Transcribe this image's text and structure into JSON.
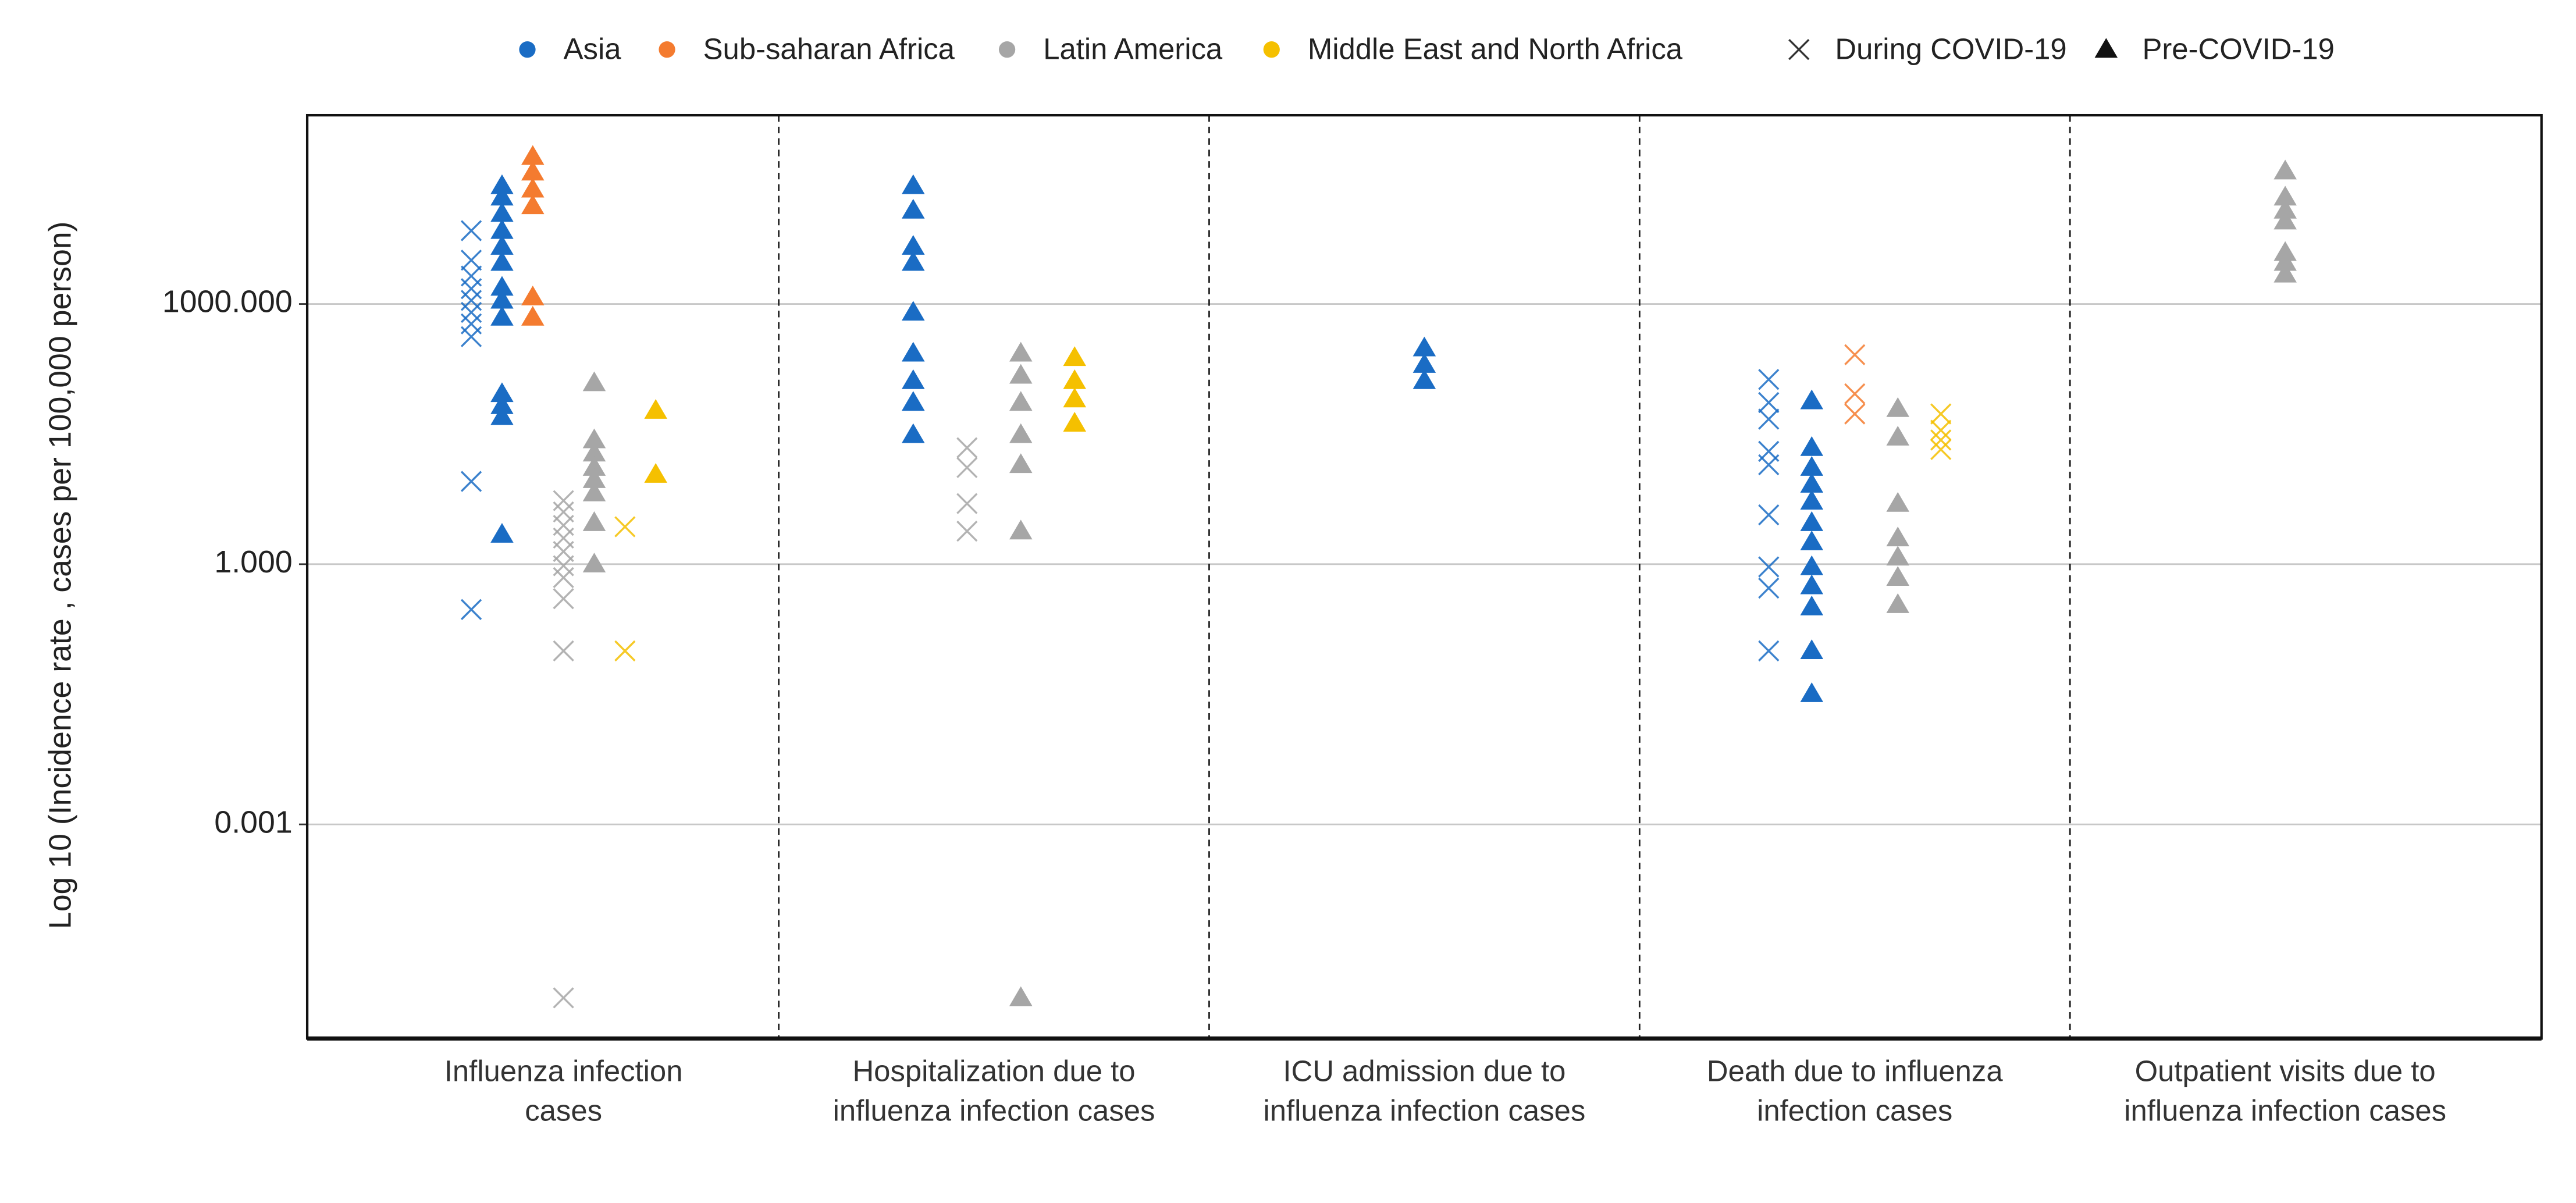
{
  "chart_data": {
    "type": "strip",
    "y_label": "Log 10 (Incidence rate , cases per 100,000 person)",
    "log_y": true,
    "grid": true,
    "legend": "top",
    "ylim": [
      3.4e-06,
      150000
    ],
    "yticks": [
      {
        "value": 1000,
        "label": "1000.000"
      },
      {
        "value": 1,
        "label": "1.000"
      },
      {
        "value": 0.001,
        "label": "0.001"
      }
    ],
    "categories": [
      "Influenza infection cases",
      "Hospitalization due to influenza infection cases",
      "ICU admission due to influenza infection cases",
      "Death due to influenza infection cases",
      "Outpatient visits due to influenza infection cases"
    ],
    "periods": [
      {
        "name": "During COVID-19",
        "marker": "x"
      },
      {
        "name": "Pre-COVID-19",
        "marker": "triangle"
      }
    ],
    "regions": [
      {
        "name": "Asia",
        "color": "#1a6cc4",
        "values": [
          [
            [
              7000,
              3200,
              2100,
              1500,
              1100,
              800,
              590,
              420,
              9,
              0.3
            ],
            [],
            [],
            [
              135,
              73,
              47,
              20,
              14,
              3.7,
              0.93,
              0.53,
              0.1
            ],
            []
          ],
          [
            [
              23000,
              17000,
              11000,
              7000,
              4600,
              3000,
              1550,
              1100,
              700,
              92,
              67,
              50,
              2.2
            ],
            [
              23000,
              12000,
              4600,
              3000,
              800,
              270,
              130,
              73,
              31
            ],
            [
              310,
              200,
              130
            ],
            [
              76,
              22,
              13,
              8.3,
              5.3,
              3,
              1.8,
              0.93,
              0.56,
              0.32,
              0.1,
              0.032
            ],
            []
          ]
        ]
      },
      {
        "name": "Sub-saharan Africa",
        "color": "#f47b2f",
        "values": [
          [
            [],
            [],
            [],
            [
              260,
              92,
              54
            ],
            []
          ],
          [
            [
              50000,
              33000,
              21000,
              13500,
              1200,
              700
            ],
            [],
            [],
            [],
            []
          ]
        ]
      },
      {
        "name": "Latin America",
        "color": "#a6a6a6",
        "values": [
          [
            [
              5.4,
              4,
              2.8,
              2,
              1.4,
              0.96,
              0.7,
              0.4,
              0.1,
              1e-05
            ],
            [
              22,
              13,
              5,
              2.4
            ],
            [],
            [],
            []
          ],
          [
            [
              123,
              27,
              19,
              13,
              9.4,
              6.6,
              3,
              1
            ],
            [
              270,
              150,
              73,
              31,
              14,
              2.4,
              1e-05
            ],
            [],
            [
              62,
              29,
              5,
              2,
              1.2,
              0.7,
              0.34
            ],
            [
              34000,
              17000,
              12000,
              9000,
              3900,
              3000,
              2200
            ]
          ]
        ]
      },
      {
        "name": "Middle East and North Africa",
        "color": "#f5c000",
        "values": [
          [
            [
              2.7,
              0.1
            ],
            [],
            [],
            [
              54,
              35,
              27,
              21
            ],
            []
          ],
          [
            [
              59,
              10.8
            ],
            [
              240,
              130,
              80,
              42
            ],
            [],
            [],
            []
          ]
        ]
      }
    ]
  }
}
